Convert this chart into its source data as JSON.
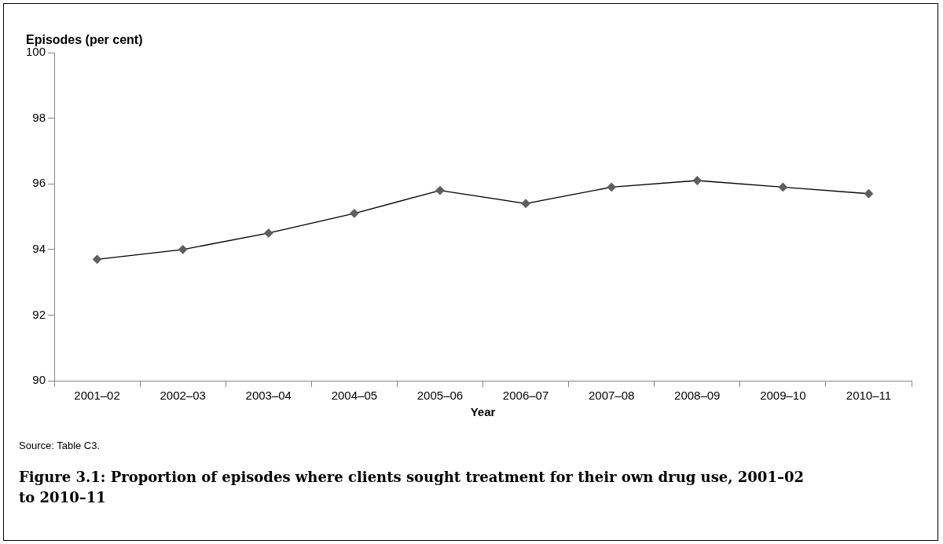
{
  "chart_data": {
    "type": "line",
    "title": "Figure 3.1: Proportion of episodes where clients sought treatment for their own drug use, 2001–02 to 2010–11",
    "ylabel": "Episodes (per cent)",
    "xlabel": "Year",
    "categories": [
      "2001–02",
      "2002–03",
      "2003–04",
      "2004–05",
      "2005–06",
      "2006–07",
      "2007–08",
      "2008–09",
      "2009–10",
      "2010–11"
    ],
    "series": [
      {
        "color": "#000000",
        "values": [
          93.7,
          94.0,
          94.5,
          95.1,
          95.8,
          95.4,
          95.9,
          96.1,
          95.9,
          95.7
        ]
      }
    ],
    "ylim": [
      90,
      100
    ],
    "yticks": [
      90,
      92,
      94,
      96,
      98,
      100
    ],
    "grid": false,
    "legend": false,
    "marker": "diamond",
    "line_style": "solid",
    "annotations": [
      "Source: Table C3."
    ]
  }
}
